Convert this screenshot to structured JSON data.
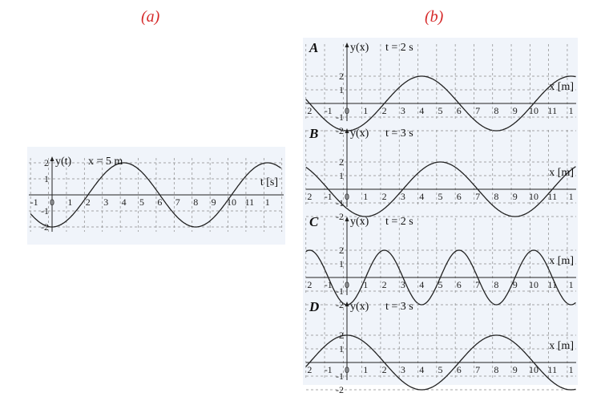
{
  "parts": {
    "a": "(a)",
    "b": "(b)"
  },
  "graph_a": {
    "y_label": "y(t)",
    "condition": "x = 5 m",
    "x_axis_label": "t [s]",
    "x_ticks": [
      "-1",
      "0",
      "1",
      "2",
      "3",
      "4",
      "5",
      "6",
      "7",
      "8",
      "9",
      "10",
      "11",
      "1"
    ],
    "y_ticks": [
      "2",
      "1",
      "-1",
      "-2"
    ]
  },
  "options": [
    {
      "letter": "A",
      "y_label": "y(x)",
      "condition": "t = 2 s",
      "x_axis_label": "x [m]",
      "x_ticks": [
        "2",
        "-1",
        "0",
        "1",
        "2",
        "3",
        "4",
        "5",
        "6",
        "7",
        "8",
        "9",
        "10",
        "11",
        "1"
      ],
      "y_ticks": [
        "2",
        "1",
        "-1",
        "-2"
      ]
    },
    {
      "letter": "B",
      "y_label": "y(x)",
      "condition": "t = 3 s",
      "x_axis_label": "x [m]",
      "x_ticks": [
        "2",
        "-1",
        "0",
        "1",
        "2",
        "3",
        "4",
        "5",
        "6",
        "7",
        "8",
        "9",
        "10",
        "11",
        "1"
      ],
      "y_ticks": [
        "2",
        "1",
        "-1",
        "-2"
      ]
    },
    {
      "letter": "C",
      "y_label": "y(x)",
      "condition": "t = 2 s",
      "x_axis_label": "x [m]",
      "x_ticks": [
        "2",
        "-1",
        "0",
        "1",
        "2",
        "3",
        "4",
        "5",
        "6",
        "7",
        "8",
        "9",
        "10",
        "11",
        "1"
      ],
      "y_ticks": [
        "2",
        "1",
        "-1",
        "-2"
      ]
    },
    {
      "letter": "D",
      "y_label": "y(x)",
      "condition": "t = 3 s",
      "x_axis_label": "x [m]",
      "x_ticks": [
        "2",
        "-1",
        "0",
        "1",
        "2",
        "3",
        "4",
        "5",
        "6",
        "7",
        "8",
        "9",
        "10",
        "11",
        "1"
      ],
      "y_ticks": [
        "2",
        "1",
        "-1",
        "-2"
      ]
    }
  ]
}
